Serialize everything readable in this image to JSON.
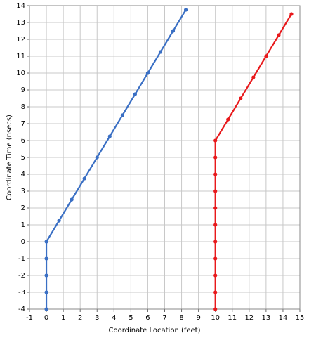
{
  "chart_data": {
    "type": "line",
    "xlabel": "Coordinate Location (feet)",
    "ylabel": "Coordinate Time (nsecs)",
    "xlim": [
      -1,
      15
    ],
    "ylim": [
      -4,
      14
    ],
    "xticks": [
      -1,
      0,
      1,
      2,
      3,
      4,
      5,
      6,
      7,
      8,
      9,
      10,
      11,
      12,
      13,
      14,
      15
    ],
    "yticks": [
      -4,
      -3,
      -2,
      -1,
      0,
      1,
      2,
      3,
      4,
      5,
      6,
      7,
      8,
      9,
      10,
      11,
      12,
      13,
      14
    ],
    "grid": true,
    "series": [
      {
        "color": "#3a6fc4",
        "x": [
          0,
          0,
          0,
          0,
          0,
          0.75,
          1.5,
          2.25,
          3,
          3.75,
          4.5,
          5.25,
          6,
          6.75,
          7.5,
          8.25
        ],
        "values": [
          -4,
          -3,
          -2,
          -1,
          0,
          1.25,
          2.5,
          3.75,
          5,
          6.25,
          7.5,
          8.75,
          10,
          11.25,
          12.5,
          13.75
        ]
      },
      {
        "color": "#e8191c",
        "x": [
          10,
          10,
          10,
          10,
          10,
          10,
          10,
          10,
          10,
          10,
          10,
          10.75,
          11.5,
          12.25,
          13,
          13.75,
          14.5
        ],
        "values": [
          -4,
          -3,
          -2,
          -1,
          0,
          1,
          2,
          3,
          4,
          5,
          6,
          7.25,
          8.5,
          9.75,
          11,
          12.25,
          13.5
        ]
      }
    ]
  }
}
